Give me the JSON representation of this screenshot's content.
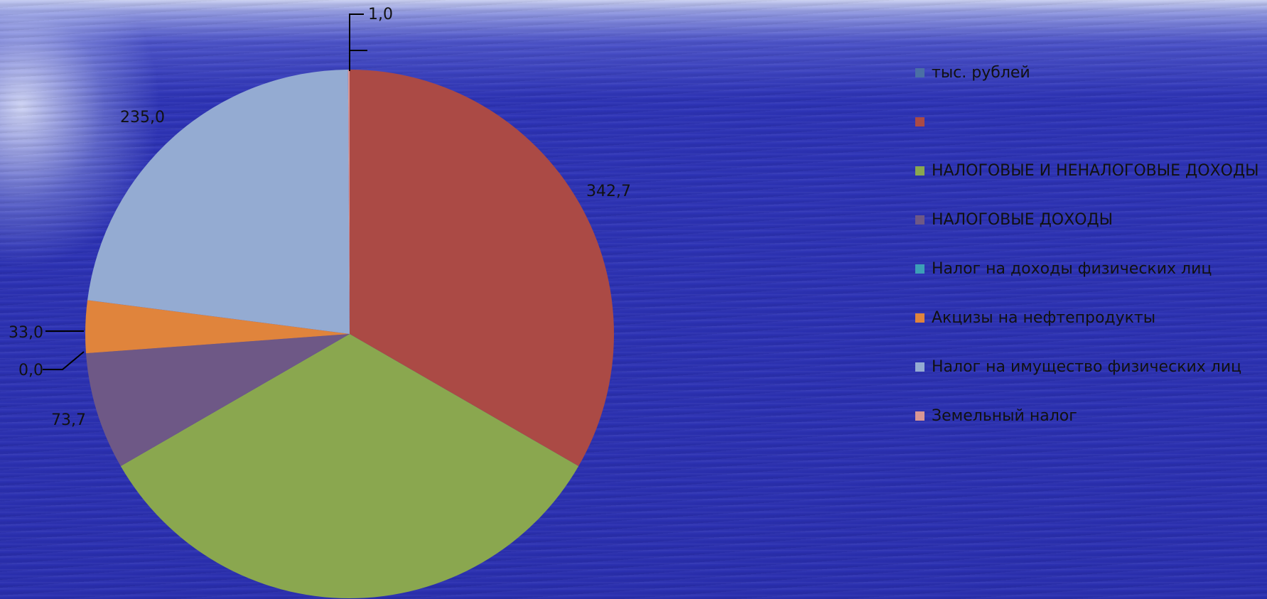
{
  "chart_data": {
    "type": "pie",
    "title": "",
    "legend_position": "right",
    "slices": [
      {
        "label": "",
        "value": 342.7,
        "value_label": "342,7",
        "color": "#ab4a45"
      },
      {
        "label": "НАЛОГОВЫЕ И НЕНАЛОГОВЫЕ ДОХОДЫ",
        "value": 342.7,
        "value_label": "",
        "color": "#8aa74f"
      },
      {
        "label": "НАЛОГОВЫЕ ДОХОДЫ",
        "value": 73.7,
        "value_label": "73,7",
        "color": "#6e5886"
      },
      {
        "label": "Налог на доходы физических лиц",
        "value": 0.0,
        "value_label": "0,0",
        "color": "#3c9fb7"
      },
      {
        "label": "Акцизы на нефтепродукты",
        "value": 33.0,
        "value_label": "33,0",
        "color": "#e0843c"
      },
      {
        "label": "Налог на имущество физических лиц",
        "value": 235.0,
        "value_label": "235,0",
        "color": "#94abd2"
      },
      {
        "label": "Земельный налог",
        "value": 1.0,
        "value_label": "1,0",
        "color": "#d99694"
      }
    ],
    "legend": [
      {
        "label": "тыс. рублей",
        "color": "#4a6fa5"
      },
      {
        "label": "",
        "color": "#ab4a45"
      },
      {
        "label": "НАЛОГОВЫЕ И НЕНАЛОГОВЫЕ ДОХОДЫ",
        "color": "#8aa74f"
      },
      {
        "label": "НАЛОГОВЫЕ ДОХОДЫ",
        "color": "#6e5886"
      },
      {
        "label": "Налог на доходы физических лиц",
        "color": "#3c9fb7"
      },
      {
        "label": "Акцизы на нефтепродукты",
        "color": "#e0843c"
      },
      {
        "label": "Налог на имущество физических лиц",
        "color": "#94abd2"
      },
      {
        "label": "Земельный налог",
        "color": "#d99694"
      }
    ]
  }
}
